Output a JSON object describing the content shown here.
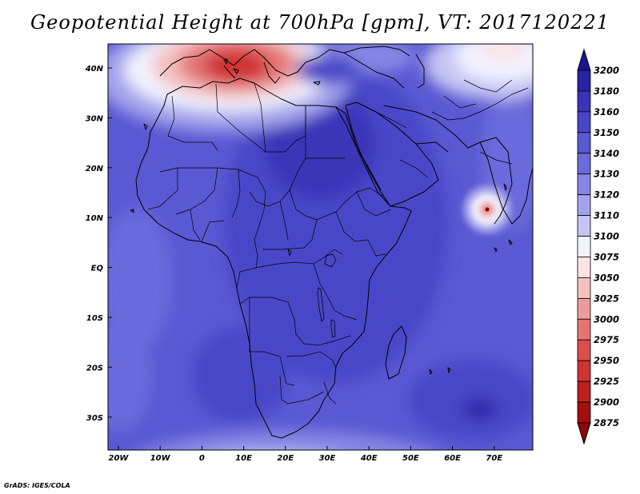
{
  "title": "Geopotential Height at 700hPa [gpm], VT: 2017120221",
  "credit": "GrADS: IGES/COLA",
  "map": {
    "variable": "Geopotential Height",
    "level": "700hPa",
    "units": "gpm",
    "valid_time": "2017120221",
    "x_ticks": [
      "20W",
      "10W",
      "0",
      "10E",
      "20E",
      "30E",
      "40E",
      "50E",
      "60E",
      "70E"
    ],
    "y_ticks": [
      "40N",
      "30N",
      "20N",
      "10N",
      "EQ",
      "10S",
      "20S",
      "30S"
    ]
  },
  "colorbar": {
    "levels": [
      "3200",
      "3180",
      "3160",
      "3150",
      "3140",
      "3130",
      "3120",
      "3110",
      "3100",
      "3075",
      "3050",
      "3025",
      "3000",
      "2975",
      "2950",
      "2925",
      "2900",
      "2875"
    ],
    "colors": [
      "#1e1490",
      "#2a23a3",
      "#3a34b8",
      "#4a46c8",
      "#5a58d2",
      "#6b6bdc",
      "#8585e4",
      "#a3a3ec",
      "#c4c4f4",
      "#f2f2fe",
      "#fbe3e3",
      "#f4c0c0",
      "#ec9c9c",
      "#e47474",
      "#da4e4e",
      "#cf3232",
      "#c01f1f",
      "#a30f0f",
      "#8b0909"
    ]
  }
}
